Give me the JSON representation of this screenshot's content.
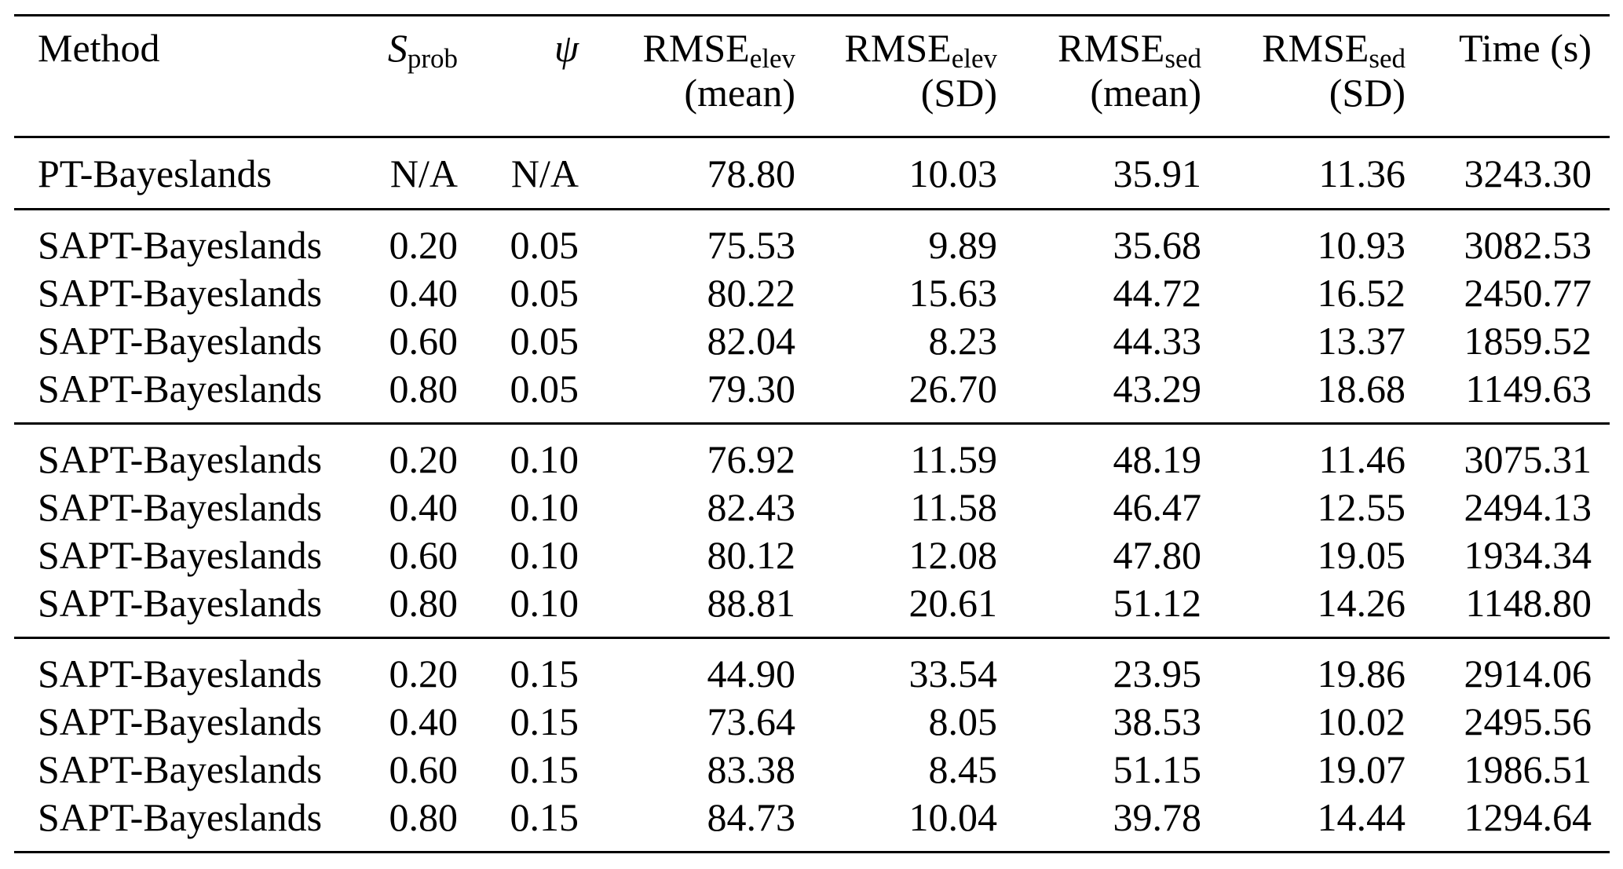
{
  "table": {
    "headers": [
      {
        "base": "Method"
      },
      {
        "base": "S",
        "sub": "prob"
      },
      {
        "base": "ψ"
      },
      {
        "base": "RMSE",
        "sub": "elev",
        "line2": "(mean)"
      },
      {
        "base": "RMSE",
        "sub": "elev",
        "line2": "(SD)"
      },
      {
        "base": "RMSE",
        "sub": "sed",
        "line2": "(mean)"
      },
      {
        "base": "RMSE",
        "sub": "sed",
        "line2": "(SD)"
      },
      {
        "base": "Time (s)"
      }
    ],
    "groups": [
      {
        "rows": [
          [
            "PT-Bayeslands",
            "N/A",
            "N/A",
            "78.80",
            "10.03",
            "35.91",
            "11.36",
            "3243.30"
          ]
        ]
      },
      {
        "rows": [
          [
            "SAPT-Bayeslands",
            "0.20",
            "0.05",
            "75.53",
            "9.89",
            "35.68",
            "10.93",
            "3082.53"
          ],
          [
            "SAPT-Bayeslands",
            "0.40",
            "0.05",
            "80.22",
            "15.63",
            "44.72",
            "16.52",
            "2450.77"
          ],
          [
            "SAPT-Bayeslands",
            "0.60",
            "0.05",
            "82.04",
            "8.23",
            "44.33",
            "13.37",
            "1859.52"
          ],
          [
            "SAPT-Bayeslands",
            "0.80",
            "0.05",
            "79.30",
            "26.70",
            "43.29",
            "18.68",
            "1149.63"
          ]
        ]
      },
      {
        "rows": [
          [
            "SAPT-Bayeslands",
            "0.20",
            "0.10",
            "76.92",
            "11.59",
            "48.19",
            "11.46",
            "3075.31"
          ],
          [
            "SAPT-Bayeslands",
            "0.40",
            "0.10",
            "82.43",
            "11.58",
            "46.47",
            "12.55",
            "2494.13"
          ],
          [
            "SAPT-Bayeslands",
            "0.60",
            "0.10",
            "80.12",
            "12.08",
            "47.80",
            "19.05",
            "1934.34"
          ],
          [
            "SAPT-Bayeslands",
            "0.80",
            "0.10",
            "88.81",
            "20.61",
            "51.12",
            "14.26",
            "1148.80"
          ]
        ]
      },
      {
        "rows": [
          [
            "SAPT-Bayeslands",
            "0.20",
            "0.15",
            "44.90",
            "33.54",
            "23.95",
            "19.86",
            "2914.06"
          ],
          [
            "SAPT-Bayeslands",
            "0.40",
            "0.15",
            "73.64",
            "8.05",
            "38.53",
            "10.02",
            "2495.56"
          ],
          [
            "SAPT-Bayeslands",
            "0.60",
            "0.15",
            "83.38",
            "8.45",
            "51.15",
            "19.07",
            "1986.51"
          ],
          [
            "SAPT-Bayeslands",
            "0.80",
            "0.15",
            "84.73",
            "10.04",
            "39.78",
            "14.44",
            "1294.64"
          ]
        ]
      }
    ]
  }
}
